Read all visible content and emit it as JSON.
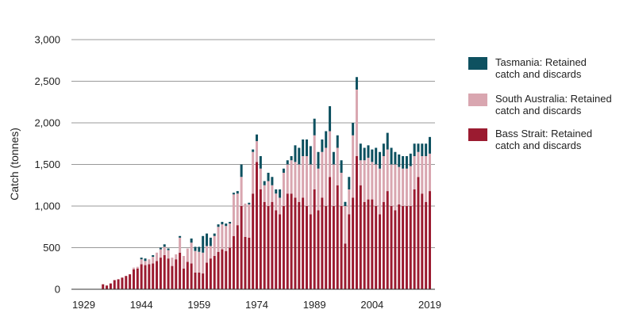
{
  "chart_data": {
    "type": "bar",
    "stacked": true,
    "ylabel": "Catch (tonnes)",
    "ylim": [
      0,
      3000
    ],
    "yticks": [
      0,
      500,
      1000,
      1500,
      2000,
      2500,
      3000
    ],
    "ytick_labels": [
      "0",
      "500",
      "1,000",
      "1,500",
      "2,000",
      "2,500",
      "3,000"
    ],
    "xlim": [
      1929,
      2019
    ],
    "xticks": [
      1929,
      1944,
      1959,
      1974,
      1989,
      2004,
      2019
    ],
    "grid": true,
    "legend_position": "right",
    "x": [
      1929,
      1930,
      1931,
      1932,
      1933,
      1934,
      1935,
      1936,
      1937,
      1938,
      1939,
      1940,
      1941,
      1942,
      1943,
      1944,
      1945,
      1946,
      1947,
      1948,
      1949,
      1950,
      1951,
      1952,
      1953,
      1954,
      1955,
      1956,
      1957,
      1958,
      1959,
      1960,
      1961,
      1962,
      1963,
      1964,
      1965,
      1966,
      1967,
      1968,
      1969,
      1970,
      1971,
      1972,
      1973,
      1974,
      1975,
      1976,
      1977,
      1978,
      1979,
      1980,
      1981,
      1982,
      1983,
      1984,
      1985,
      1986,
      1987,
      1988,
      1989,
      1990,
      1991,
      1992,
      1993,
      1994,
      1995,
      1996,
      1997,
      1998,
      1999,
      2000,
      2001,
      2002,
      2003,
      2004,
      2005,
      2006,
      2007,
      2008,
      2009,
      2010,
      2011,
      2012,
      2013,
      2014,
      2015,
      2016,
      2017,
      2018,
      2019
    ],
    "series": [
      {
        "name": "Bass Strait: Retained catch and discards",
        "color": "#9b1b30",
        "values": [
          0,
          0,
          0,
          0,
          0,
          60,
          45,
          70,
          110,
          120,
          140,
          160,
          180,
          240,
          250,
          300,
          290,
          300,
          310,
          340,
          380,
          410,
          370,
          280,
          360,
          440,
          250,
          330,
          310,
          200,
          200,
          190,
          320,
          370,
          400,
          450,
          480,
          460,
          500,
          640,
          770,
          1000,
          630,
          620,
          1150,
          1530,
          1200,
          1050,
          1000,
          1050,
          950,
          900,
          1000,
          1150,
          1150,
          1100,
          1050,
          1100,
          1000,
          900,
          1200,
          950,
          1100,
          1000,
          1350,
          1000,
          1250,
          1000,
          550,
          900,
          1100,
          1600,
          1250,
          1050,
          1080,
          1080,
          1000,
          900,
          1050,
          1180,
          1000,
          950,
          1020,
          1000,
          1000,
          1000,
          1200,
          1350,
          1150,
          1050,
          1180
        ]
      },
      {
        "name": "South Australia: Retained catch and discards",
        "color": "#d9a6b0",
        "values": [
          0,
          0,
          0,
          0,
          0,
          0,
          0,
          0,
          0,
          0,
          0,
          0,
          0,
          20,
          20,
          60,
          50,
          60,
          80,
          100,
          100,
          100,
          100,
          100,
          60,
          180,
          150,
          160,
          250,
          260,
          250,
          250,
          200,
          150,
          240,
          300,
          300,
          300,
          290,
          500,
          380,
          350,
          400,
          400,
          500,
          250,
          250,
          200,
          300,
          200,
          200,
          200,
          400,
          350,
          400,
          430,
          450,
          500,
          600,
          600,
          650,
          500,
          550,
          700,
          550,
          500,
          450,
          400,
          450,
          300,
          750,
          800,
          300,
          500,
          500,
          450,
          500,
          550,
          550,
          500,
          500,
          550,
          450,
          450,
          450,
          480,
          400,
          300,
          450,
          550,
          450
        ]
      },
      {
        "name": "Tasmania: Retained catch and discards",
        "color": "#0e5160",
        "values": [
          0,
          0,
          0,
          0,
          0,
          0,
          0,
          0,
          0,
          0,
          0,
          0,
          0,
          0,
          0,
          20,
          30,
          0,
          20,
          0,
          20,
          30,
          20,
          0,
          0,
          20,
          0,
          0,
          50,
          50,
          60,
          200,
          150,
          100,
          30,
          30,
          30,
          30,
          20,
          20,
          30,
          150,
          0,
          20,
          30,
          80,
          150,
          50,
          100,
          100,
          50,
          100,
          50,
          50,
          50,
          200,
          200,
          200,
          200,
          220,
          200,
          200,
          150,
          200,
          300,
          150,
          150,
          150,
          50,
          150,
          150,
          150,
          200,
          150,
          150,
          150,
          200,
          200,
          150,
          200,
          200,
          150,
          150,
          150,
          150,
          150,
          150,
          100,
          150,
          150,
          200
        ]
      }
    ],
    "legend": [
      {
        "lines": [
          "Tasmania: Retained",
          "catch and discards"
        ],
        "color": "#0e5160"
      },
      {
        "lines": [
          "South Australia: Retained",
          "catch and discards"
        ],
        "color": "#d9a6b0"
      },
      {
        "lines": [
          "Bass Strait: Retained",
          "catch and discards"
        ],
        "color": "#9b1b30"
      }
    ]
  }
}
